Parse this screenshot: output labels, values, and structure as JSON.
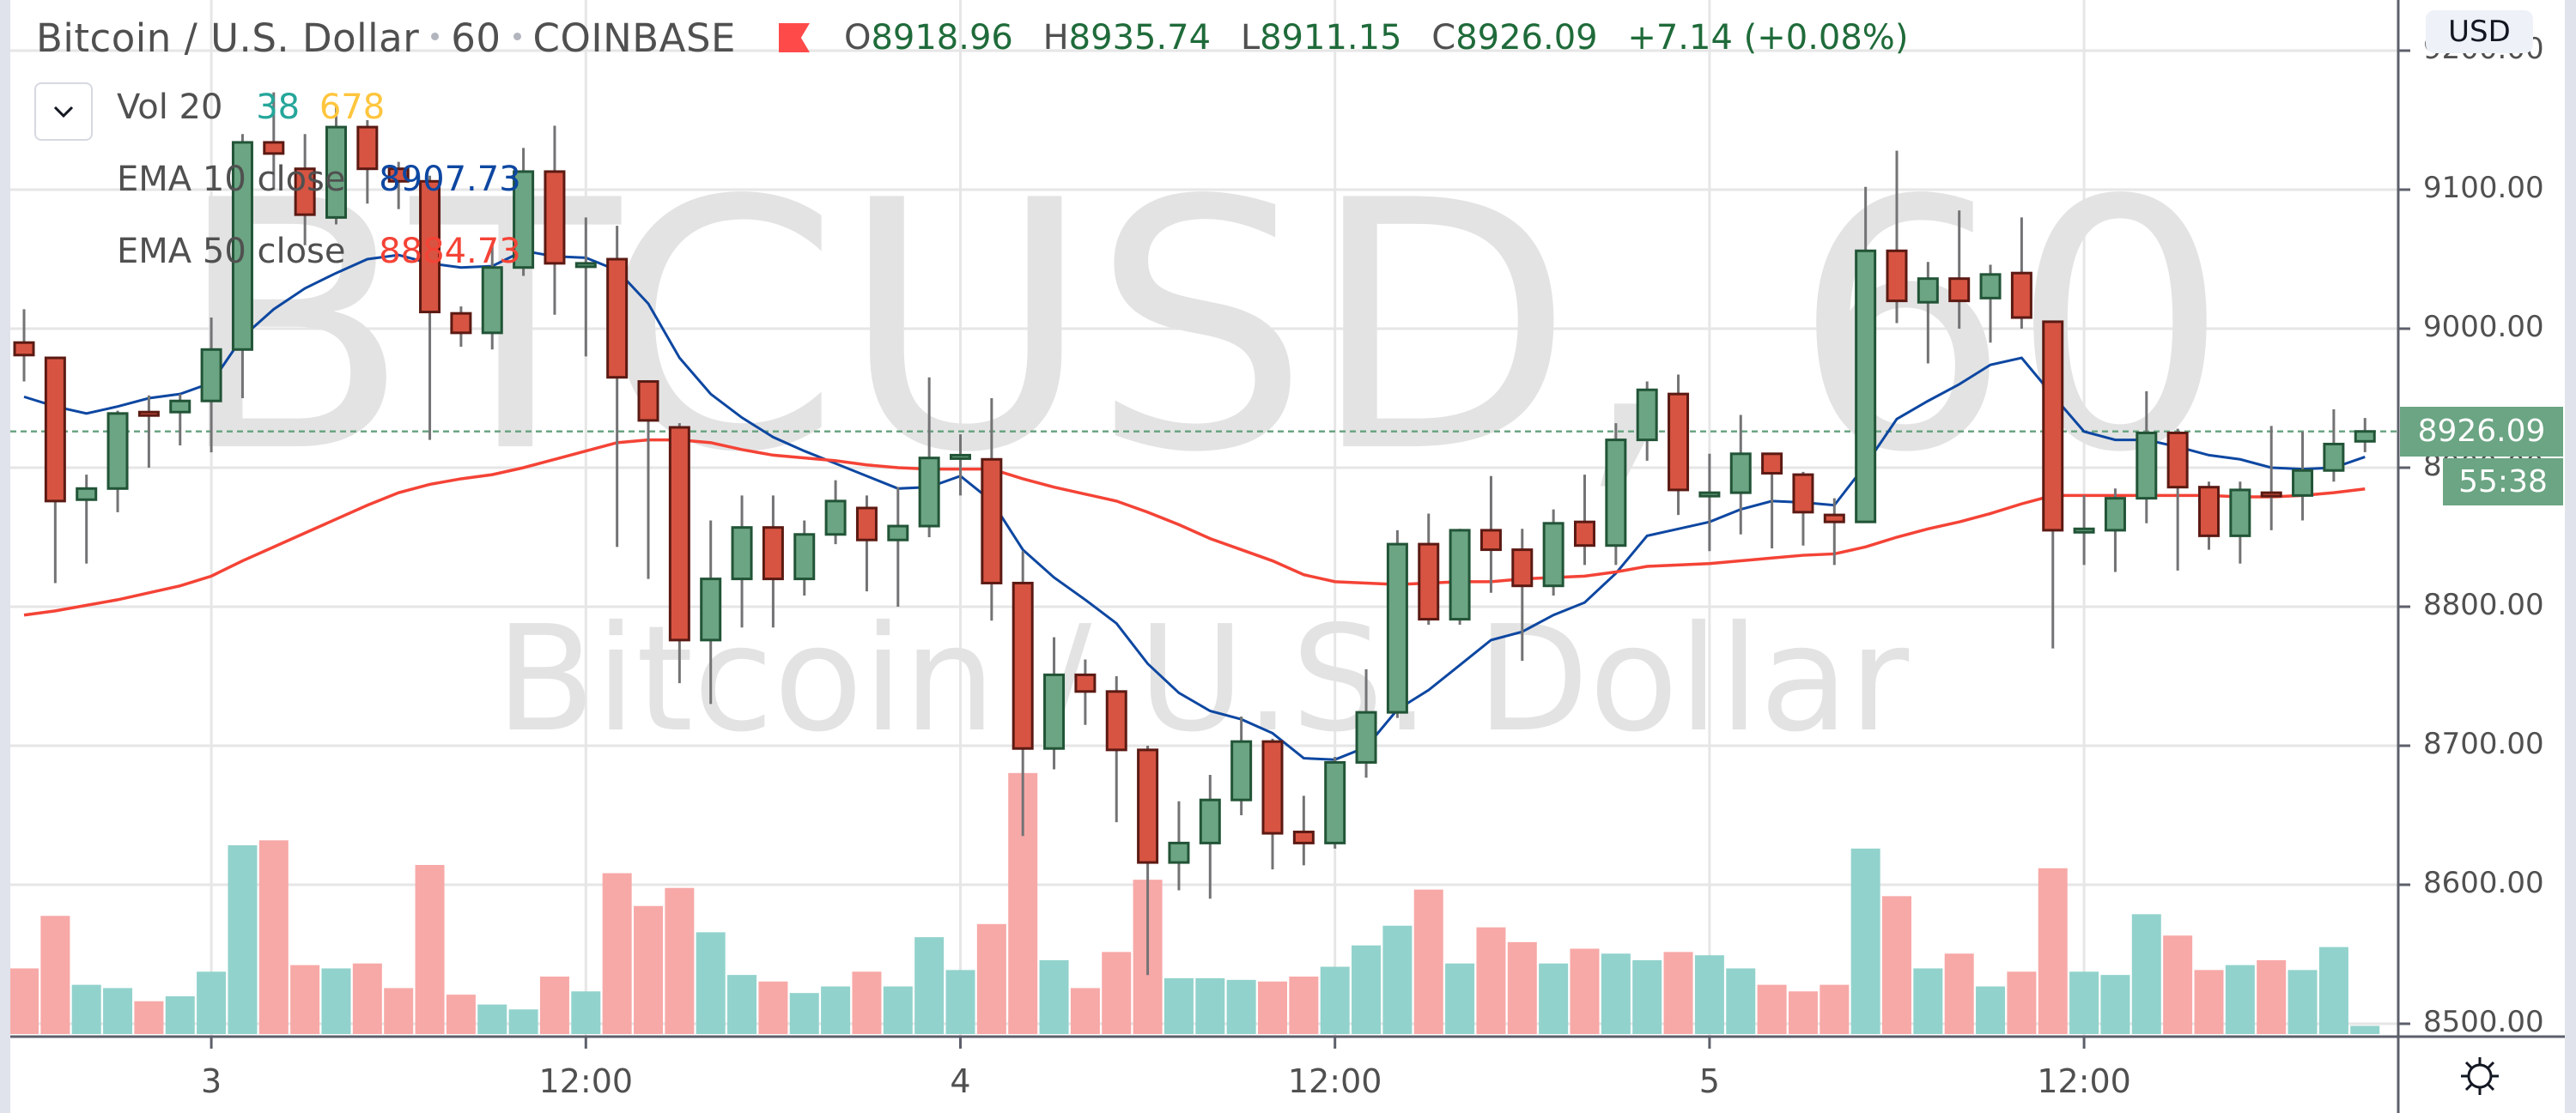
{
  "header": {
    "symbol_name": "Bitcoin / U.S. Dollar",
    "interval": "60",
    "exchange": "COINBASE",
    "ohlc": {
      "o_label": "O",
      "o_value": "8918.96",
      "h_label": "H",
      "h_value": "8935.74",
      "l_label": "L",
      "l_value": "8911.15",
      "c_label": "C",
      "c_value": "8926.09",
      "change": "+7.14 (+0.08%)"
    },
    "flag_color": "#ff4a4a"
  },
  "legend": {
    "toggle_icon": "chevron-down-icon",
    "volume": {
      "label": "Vol 20",
      "value1": "38",
      "value2": "678",
      "value1_color": "#26a69a",
      "value2_color": "#ffc53d"
    },
    "ema10": {
      "label": "EMA 10 close",
      "value": "8907.73",
      "color": "#0d47a1"
    },
    "ema50": {
      "label": "EMA 50 close",
      "value": "8884.73",
      "color": "#f44336"
    }
  },
  "watermark": {
    "line1": "BTCUSD, 60",
    "line2": "Bitcoin / U.S. Dollar"
  },
  "price_axis": {
    "currency_badge": "USD",
    "ticks": [
      "9200.00",
      "9100.00",
      "9000.00",
      "8900.00",
      "8800.00",
      "8700.00",
      "8600.00",
      "8500.00"
    ],
    "last_price_label": "8926.09",
    "countdown_label": "55:38",
    "settings_icon": "gear-icon"
  },
  "time_axis": {
    "labels": [
      {
        "text": "3",
        "index": 6
      },
      {
        "text": "12:00",
        "index": 18
      },
      {
        "text": "4",
        "index": 30
      },
      {
        "text": "12:00",
        "index": 42
      },
      {
        "text": "5",
        "index": 54
      },
      {
        "text": "12:00",
        "index": 66
      }
    ]
  },
  "colors": {
    "up": "#6ba583",
    "up_border": "#225437",
    "down": "#d75442",
    "down_border": "#5b1a13",
    "wick": "#737375",
    "vol_up": "#92d2cc",
    "vol_down": "#f7a9a7",
    "grid": "#e6e6e6",
    "last_price_line": "#6ba583"
  },
  "chart_data": {
    "type": "candlestick",
    "title": "Bitcoin / U.S. Dollar · 60 · COINBASE",
    "xlabel": "",
    "ylabel": "USD",
    "ylim": [
      8500,
      9200
    ],
    "grid": true,
    "x_tick_labels": [
      "3",
      "12:00",
      "4",
      "12:00",
      "5",
      "12:00"
    ],
    "y_tick_labels": [
      "9200.00",
      "9100.00",
      "9000.00",
      "8900.00",
      "8800.00",
      "8700.00",
      "8600.00",
      "8500.00"
    ],
    "last_price": 8926.09,
    "candles": [
      [
        8990,
        9014,
        8962,
        8981
      ],
      [
        8979,
        8979,
        8817,
        8876
      ],
      [
        8877,
        8895,
        8831,
        8885
      ],
      [
        8885,
        8941,
        8868,
        8939
      ],
      [
        8940,
        8952,
        8900,
        8939
      ],
      [
        8940,
        8953,
        8916,
        8948
      ],
      [
        8948,
        9008,
        8911,
        8985
      ],
      [
        8985,
        9140,
        8950,
        9134
      ],
      [
        9134,
        9170,
        9100,
        9126
      ],
      [
        9115,
        9140,
        9060,
        9082
      ],
      [
        9080,
        9160,
        9075,
        9145
      ],
      [
        9145,
        9150,
        9090,
        9115
      ],
      [
        9115,
        9120,
        9086,
        9106
      ],
      [
        9106,
        9110,
        8920,
        9012
      ],
      [
        9011,
        9016,
        8987,
        8997
      ],
      [
        8997,
        9060,
        8985,
        9044
      ],
      [
        9044,
        9130,
        9038,
        9113
      ],
      [
        9113,
        9146,
        9010,
        9047
      ],
      [
        9047,
        9080,
        8980,
        9047
      ],
      [
        9050,
        9074,
        8843,
        8965
      ],
      [
        8962,
        8962,
        8820,
        8934
      ],
      [
        8929,
        8932,
        8745,
        8776
      ],
      [
        8776,
        8862,
        8730,
        8820
      ],
      [
        8820,
        8880,
        8785,
        8857
      ],
      [
        8857,
        8880,
        8785,
        8820
      ],
      [
        8820,
        8862,
        8808,
        8852
      ],
      [
        8852,
        8891,
        8845,
        8876
      ],
      [
        8871,
        8880,
        8811,
        8848
      ],
      [
        8848,
        8886,
        8800,
        8858
      ],
      [
        8858,
        8965,
        8850,
        8907
      ],
      [
        8909,
        8924,
        8880,
        8909
      ],
      [
        8906,
        8950,
        8790,
        8817
      ],
      [
        8817,
        8840,
        8635,
        8698
      ],
      [
        8698,
        8778,
        8683,
        8751
      ],
      [
        8751,
        8762,
        8715,
        8739
      ],
      [
        8739,
        8750,
        8645,
        8697
      ],
      [
        8697,
        8700,
        8535,
        8616
      ],
      [
        8616,
        8660,
        8596,
        8630
      ],
      [
        8630,
        8679,
        8590,
        8661
      ],
      [
        8661,
        8721,
        8650,
        8703
      ],
      [
        8703,
        8705,
        8611,
        8637
      ],
      [
        8638,
        8664,
        8614,
        8630
      ],
      [
        8630,
        8692,
        8626,
        8688
      ],
      [
        8688,
        8755,
        8677,
        8724
      ],
      [
        8724,
        8855,
        8720,
        8845
      ],
      [
        8845,
        8867,
        8787,
        8791
      ],
      [
        8791,
        8856,
        8787,
        8855
      ],
      [
        8855,
        8894,
        8810,
        8841
      ],
      [
        8841,
        8856,
        8761,
        8815
      ],
      [
        8815,
        8870,
        8808,
        8860
      ],
      [
        8861,
        8895,
        8830,
        8844
      ],
      [
        8844,
        8932,
        8830,
        8920
      ],
      [
        8920,
        8962,
        8905,
        8956
      ],
      [
        8953,
        8967,
        8866,
        8884
      ],
      [
        8882,
        8910,
        8840,
        8882
      ],
      [
        8882,
        8938,
        8852,
        8910
      ],
      [
        8910,
        8910,
        8842,
        8896
      ],
      [
        8895,
        8897,
        8844,
        8868
      ],
      [
        8866,
        8878,
        8830,
        8861
      ],
      [
        8861,
        9102,
        8861,
        9056
      ],
      [
        9056,
        9128,
        9004,
        9020
      ],
      [
        9019,
        9048,
        8975,
        9036
      ],
      [
        9036,
        9085,
        9000,
        9020
      ],
      [
        9022,
        9046,
        8990,
        9039
      ],
      [
        9040,
        9080,
        9000,
        9008
      ],
      [
        9005,
        9005,
        8770,
        8855
      ],
      [
        8856,
        8880,
        8830,
        8856
      ],
      [
        8855,
        8885,
        8825,
        8878
      ],
      [
        8878,
        8955,
        8860,
        8925
      ],
      [
        8925,
        8928,
        8826,
        8886
      ],
      [
        8886,
        8890,
        8841,
        8851
      ],
      [
        8851,
        8890,
        8831,
        8884
      ],
      [
        8882,
        8930,
        8855,
        8880
      ],
      [
        8880,
        8926,
        8862,
        8898
      ],
      [
        8898,
        8942,
        8890,
        8917
      ],
      [
        8918.96,
        8935.74,
        8911.15,
        8926.09
      ]
    ],
    "candle_fields": [
      "open",
      "high",
      "low",
      "close"
    ],
    "volume": [
      40,
      72,
      30,
      28,
      20,
      23,
      38,
      115,
      118,
      42,
      40,
      43,
      28,
      103,
      24,
      18,
      15,
      35,
      26,
      98,
      78,
      89,
      62,
      36,
      32,
      25,
      29,
      38,
      29,
      59,
      39,
      67,
      159,
      45,
      28,
      50,
      94,
      34,
      34,
      33,
      32,
      35,
      41,
      54,
      66,
      88,
      43,
      65,
      56,
      43,
      52,
      49,
      45,
      50,
      48,
      40,
      30,
      26,
      30,
      113,
      84,
      40,
      49,
      29,
      38,
      101,
      38,
      36,
      73,
      60,
      39,
      42,
      45,
      39,
      53,
      5
    ],
    "series": [
      {
        "name": "EMA 10 close",
        "color": "#0d47a1",
        "values": [
          8951,
          8944,
          8939,
          8944,
          8950,
          8953,
          8961,
          8994,
          9014,
          9029,
          9040,
          9050,
          9053,
          9047,
          9044,
          9045,
          9056,
          9052,
          9051,
          9042,
          9018,
          8979,
          8953,
          8936,
          8922,
          8912,
          8903,
          8894,
          8885,
          8886,
          8894,
          8876,
          8841,
          8821,
          8805,
          8788,
          8759,
          8738,
          8725,
          8719,
          8709,
          8691,
          8690,
          8699,
          8726,
          8740,
          8758,
          8776,
          8782,
          8794,
          8803,
          8824,
          8851,
          8856,
          8861,
          8870,
          8876,
          8875,
          8873,
          8902,
          8935,
          8948,
          8960,
          8974,
          8979,
          8952,
          8926,
          8920,
          8920,
          8915,
          8909,
          8906,
          8900,
          8899,
          8900,
          8907.73
        ]
      },
      {
        "name": "EMA 50 close",
        "color": "#f44336",
        "values": [
          8794,
          8797,
          8801,
          8805,
          8810,
          8815,
          8822,
          8833,
          8843,
          8853,
          8863,
          8873,
          8882,
          8888,
          8892,
          8895,
          8900,
          8906,
          8912,
          8918,
          8920,
          8920,
          8918,
          8913,
          8909,
          8907,
          8905,
          8902,
          8900,
          8899,
          8899,
          8899,
          8892,
          8886,
          8881,
          8876,
          8868,
          8859,
          8849,
          8841,
          8833,
          8823,
          8818,
          8817,
          8816,
          8817,
          8818,
          8818,
          8820,
          8821,
          8822,
          8825,
          8829,
          8830,
          8831,
          8833,
          8835,
          8837,
          8838,
          8843,
          8850,
          8856,
          8861,
          8867,
          8874,
          8880,
          8880,
          8880,
          8880,
          8880,
          8880,
          8879,
          8879,
          8880,
          8882,
          8884.73
        ]
      }
    ]
  }
}
